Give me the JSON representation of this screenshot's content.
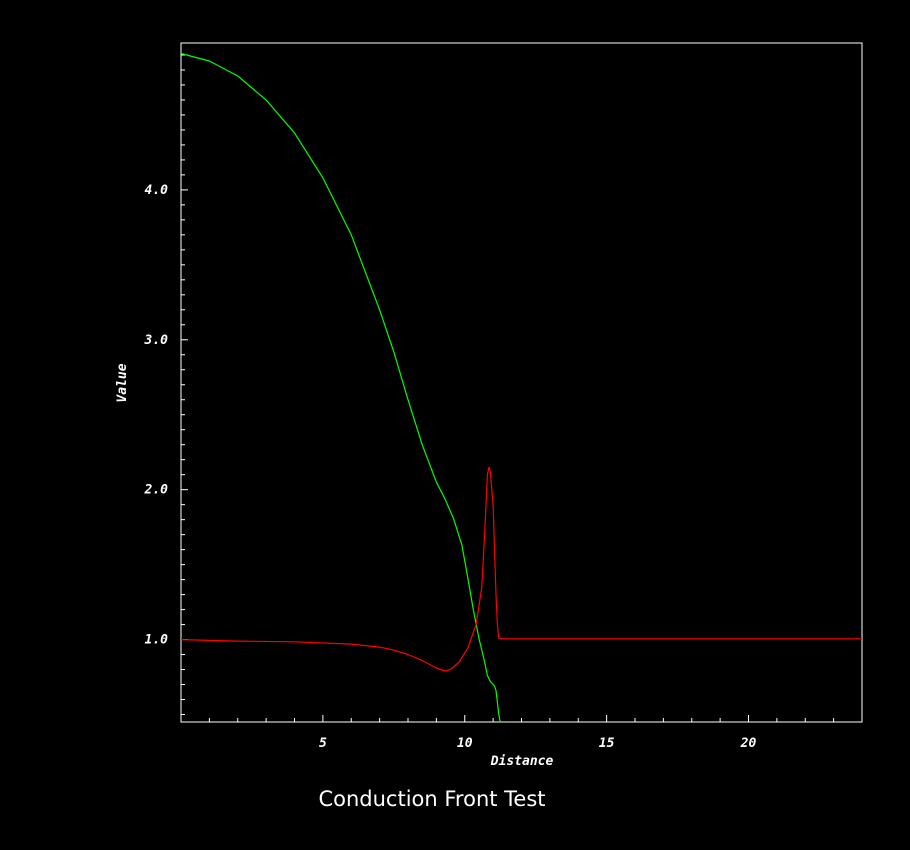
{
  "chart_data": {
    "type": "line",
    "title": "Conduction Front Test",
    "xlabel": "Distance",
    "ylabel": "Value",
    "xlim": [
      0,
      24
    ],
    "ylim": [
      0.45,
      4.98
    ],
    "x_ticks": [
      5,
      10,
      15,
      20
    ],
    "x_tick_labels": [
      "5",
      "10",
      "15",
      "20"
    ],
    "y_ticks": [
      1.0,
      2.0,
      3.0,
      4.0
    ],
    "y_tick_labels": [
      "1.0",
      "2.0",
      "3.0",
      "4.0"
    ],
    "grid": false,
    "colors": {
      "background": "#000000",
      "axes": "#ffffff",
      "text": "#ffffff"
    },
    "series": [
      {
        "color": "#00ff00",
        "x": [
          0,
          1,
          2,
          3,
          4,
          5,
          6,
          7,
          7.5,
          8,
          8.5,
          9,
          9.3,
          9.6,
          9.9,
          10.1,
          10.3,
          10.5,
          10.6,
          10.7,
          10.8,
          10.9,
          11.0,
          11.05,
          11.1,
          11.15,
          11.2,
          11.25
        ],
        "y": [
          4.91,
          4.86,
          4.76,
          4.6,
          4.38,
          4.08,
          3.7,
          3.2,
          2.92,
          2.6,
          2.3,
          2.05,
          1.94,
          1.81,
          1.63,
          1.42,
          1.2,
          1.01,
          0.93,
          0.85,
          0.76,
          0.72,
          0.7,
          0.69,
          0.66,
          0.58,
          0.5,
          0.45
        ]
      },
      {
        "color": "#ff0000",
        "x": [
          0,
          2,
          4,
          6,
          7,
          7.5,
          8,
          8.5,
          9,
          9.3,
          9.5,
          9.8,
          10.1,
          10.4,
          10.6,
          10.7,
          10.75,
          10.8,
          10.85,
          10.9,
          11.0,
          11.05,
          11.1,
          11.15,
          11.2,
          11.3,
          12,
          16,
          20,
          24
        ],
        "y": [
          1.0,
          0.99,
          0.985,
          0.97,
          0.95,
          0.93,
          0.9,
          0.86,
          0.81,
          0.79,
          0.8,
          0.85,
          0.94,
          1.1,
          1.35,
          1.7,
          1.9,
          2.1,
          2.15,
          2.12,
          1.9,
          1.6,
          1.3,
          1.1,
          1.01,
          1.005,
          1.005,
          1.005,
          1.005,
          1.005
        ]
      }
    ]
  }
}
